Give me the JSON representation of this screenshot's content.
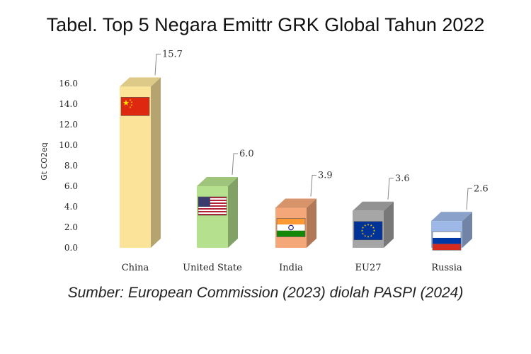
{
  "chart_data": {
    "type": "bar",
    "title": "Tabel. Top 5 Negara Emittr GRK Global Tahun 2022",
    "ylabel": "Gt CO2eq",
    "xlabel": "",
    "ylim": [
      0,
      16
    ],
    "yticks": [
      "0.0",
      "2.0",
      "4.0",
      "6.0",
      "8.0",
      "10.0",
      "12.0",
      "14.0",
      "16.0"
    ],
    "categories": [
      "China",
      "United State",
      "India",
      "EU27",
      "Russia"
    ],
    "values": [
      15.7,
      6.0,
      3.9,
      3.6,
      2.6
    ],
    "value_labels": [
      "15.7",
      "6.0",
      "3.9",
      "3.6",
      "2.6"
    ],
    "bar_colors": [
      "#fbe49a",
      "#b5e08d",
      "#f4a779",
      "#a6a6a6",
      "#9db8e6"
    ],
    "flag_icons": [
      "china-flag-icon",
      "usa-flag-icon",
      "india-flag-icon",
      "eu-flag-icon",
      "russia-flag-icon"
    ],
    "grid": false,
    "legend": "none"
  },
  "source_note": "Sumber: European Commission (2023) diolah PASPI (2024)"
}
